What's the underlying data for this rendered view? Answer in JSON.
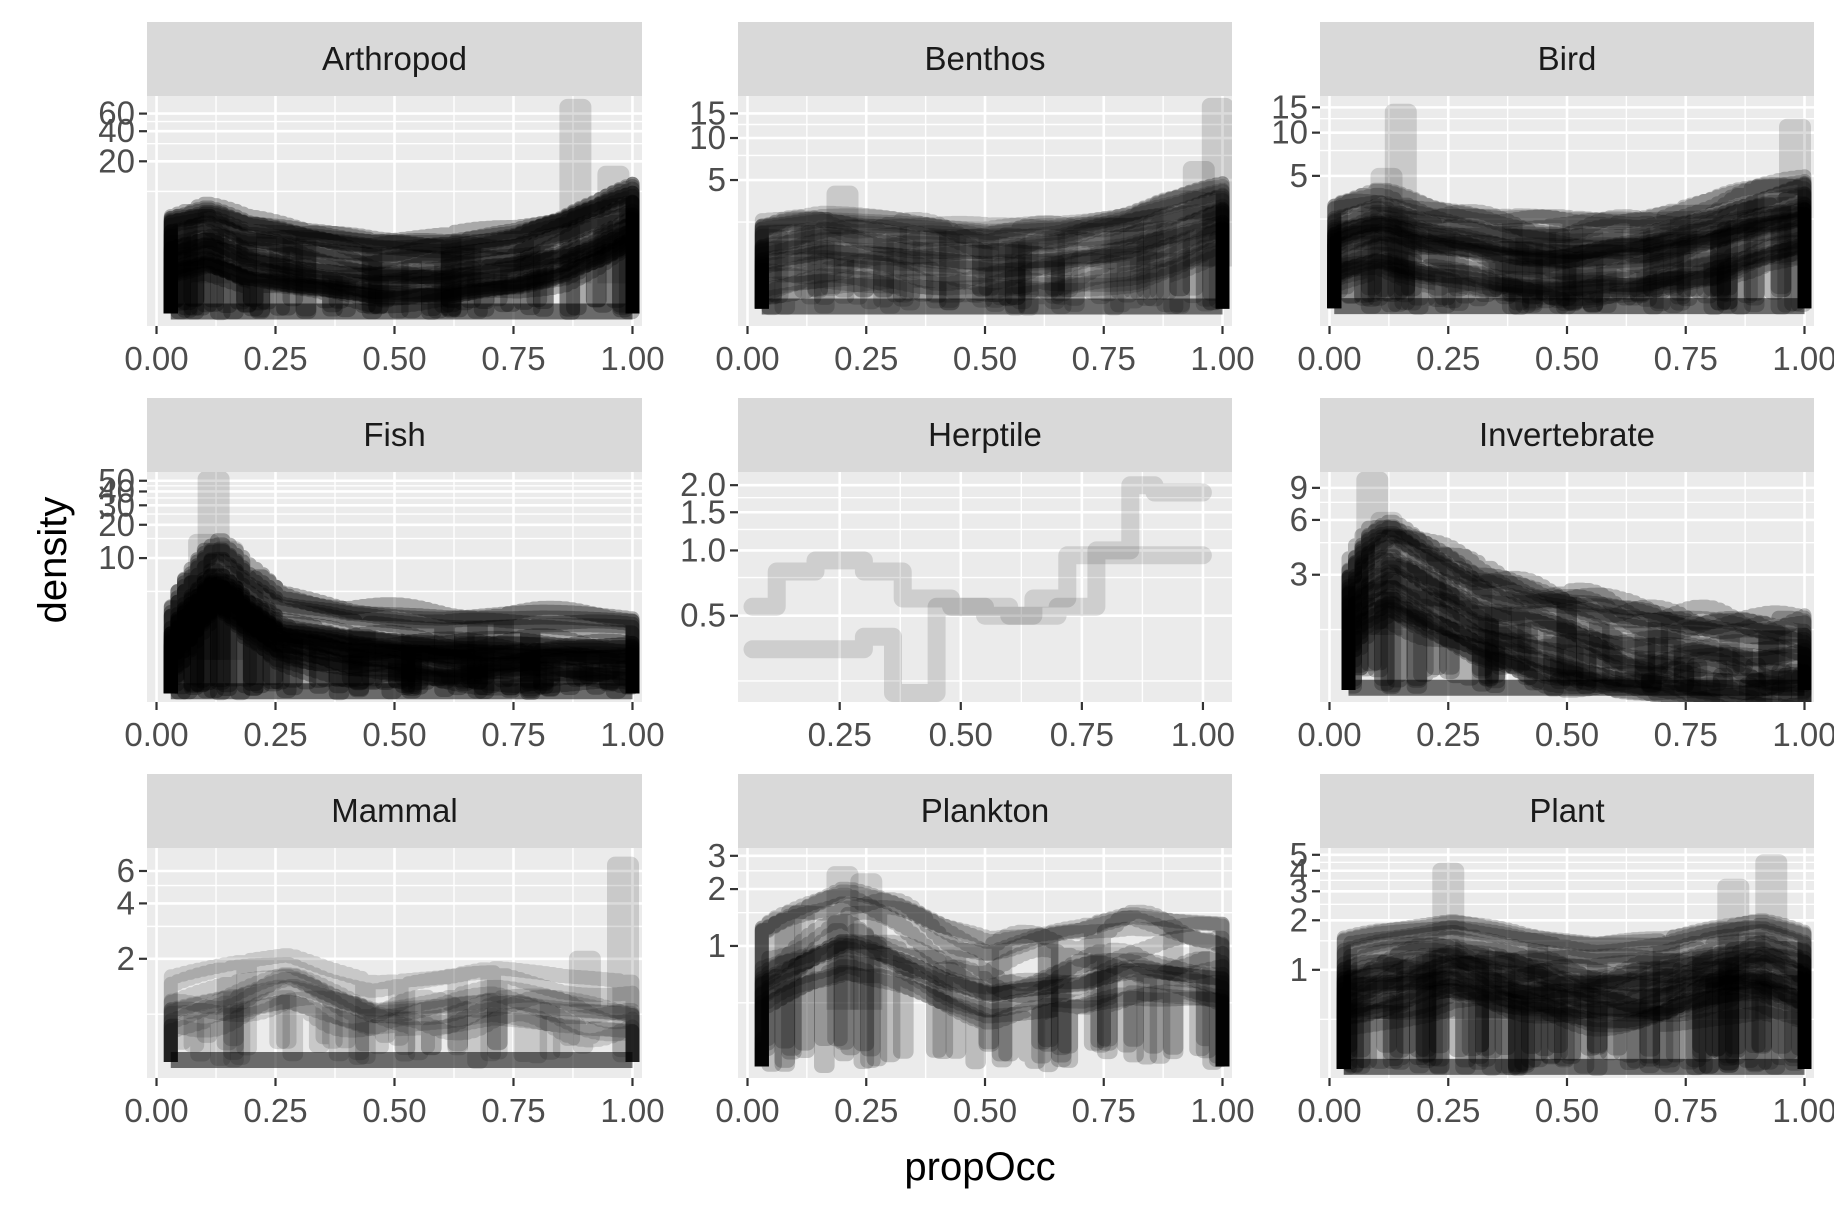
{
  "chart_data": {
    "type": "line",
    "layout": "facet_wrap 3x3, free y scales (log-like)",
    "xlabel": "propOcc",
    "ylabel": "density",
    "grid": true,
    "colors": {
      "panel_bg": "#ebebeb",
      "strip_bg": "#d9d9d9",
      "grid": "#ffffff",
      "line": "#000000"
    },
    "panels": [
      {
        "name": "Arthropod",
        "x_ticks": [
          "0.00",
          "0.25",
          "0.50",
          "0.75",
          "1.00"
        ],
        "x_tick_values": [
          0,
          0.25,
          0.5,
          0.75,
          1
        ],
        "xlim": [
          -0.02,
          1.02
        ],
        "y_ticks": [
          "20",
          "40",
          "60"
        ],
        "y_tick_values": [
          20,
          40,
          60
        ],
        "y_minor": [
          10,
          30,
          50
        ],
        "ylim": [
          0.45,
          90
        ],
        "x_range": [
          0.03,
          1.0
        ],
        "bottom": 0.6,
        "band_width": 0.8,
        "baseline": true,
        "n_lines": 30,
        "line_alpha": 0.28,
        "curve_x": [
          0.03,
          0.1,
          0.18,
          0.3,
          0.45,
          0.6,
          0.75,
          0.85,
          0.92,
          1.0
        ],
        "curve_y": [
          2.8,
          3.4,
          2.4,
          1.9,
          1.6,
          1.6,
          2.0,
          2.6,
          3.6,
          5.5
        ],
        "spikes": [
          [
            0.88,
            70
          ],
          [
            0.96,
            15
          ],
          [
            0.12,
            6
          ]
        ]
      },
      {
        "name": "Benthos",
        "x_ticks": [
          "0.00",
          "0.25",
          "0.50",
          "0.75",
          "1.00"
        ],
        "x_tick_values": [
          0,
          0.25,
          0.5,
          0.75,
          1
        ],
        "xlim": [
          -0.02,
          1.02
        ],
        "y_ticks": [
          "5",
          "10",
          "15"
        ],
        "y_tick_values": [
          5,
          10,
          15
        ],
        "y_minor": [
          2.5,
          7.5,
          12.5
        ],
        "ylim": [
          0.45,
          20
        ],
        "x_range": [
          0.03,
          1.0
        ],
        "bottom": 0.6,
        "band_width": 0.55,
        "baseline": true,
        "n_lines": 28,
        "line_alpha": 0.18,
        "curve_x": [
          0.03,
          0.15,
          0.3,
          0.5,
          0.65,
          0.8,
          0.9,
          1.0
        ],
        "curve_y": [
          1.4,
          1.6,
          1.5,
          1.3,
          1.4,
          1.7,
          2.1,
          2.6
        ],
        "spikes": [
          [
            0.99,
            17
          ],
          [
            0.95,
            6
          ],
          [
            0.2,
            4
          ]
        ]
      },
      {
        "name": "Bird",
        "x_ticks": [
          "0.00",
          "0.25",
          "0.50",
          "0.75",
          "1.00"
        ],
        "x_tick_values": [
          0,
          0.25,
          0.5,
          0.75,
          1
        ],
        "xlim": [
          -0.02,
          1.02
        ],
        "y_ticks": [
          "5",
          "10",
          "15"
        ],
        "y_tick_values": [
          5,
          10,
          15
        ],
        "y_minor": [
          2.5,
          7.5,
          12.5
        ],
        "ylim": [
          0.45,
          18
        ],
        "x_range": [
          0.01,
          1.0
        ],
        "bottom": 0.6,
        "band_width": 0.7,
        "baseline": true,
        "n_lines": 34,
        "line_alpha": 0.22,
        "curve_x": [
          0.01,
          0.1,
          0.2,
          0.35,
          0.5,
          0.65,
          0.8,
          0.9,
          1.0
        ],
        "curve_y": [
          1.8,
          2.2,
          1.8,
          1.5,
          1.4,
          1.5,
          1.9,
          2.4,
          2.8
        ],
        "spikes": [
          [
            0.15,
            14
          ],
          [
            0.98,
            11
          ],
          [
            0.12,
            5
          ]
        ]
      },
      {
        "name": "Fish",
        "x_ticks": [
          "0.00",
          "0.25",
          "0.50",
          "0.75",
          "1.00"
        ],
        "x_tick_values": [
          0,
          0.25,
          0.5,
          0.75,
          1
        ],
        "xlim": [
          -0.02,
          1.02
        ],
        "y_ticks": [
          "10",
          "20",
          "30",
          "40",
          "50"
        ],
        "y_tick_values": [
          10,
          20,
          30,
          40,
          50
        ],
        "y_minor": [
          5,
          15,
          25,
          35,
          45
        ],
        "ylim": [
          0.5,
          60
        ],
        "x_range": [
          0.03,
          1.0
        ],
        "bottom": 0.6,
        "band_width": 0.8,
        "baseline": true,
        "n_lines": 32,
        "line_alpha": 0.3,
        "curve_x": [
          0.03,
          0.08,
          0.12,
          0.18,
          0.25,
          0.4,
          0.6,
          0.8,
          1.0
        ],
        "curve_y": [
          2.0,
          4.5,
          7.0,
          4.0,
          2.4,
          1.8,
          1.6,
          1.6,
          1.5
        ],
        "spikes": [
          [
            0.12,
            52
          ],
          [
            0.15,
            12
          ],
          [
            0.1,
            14
          ]
        ]
      },
      {
        "name": "Herptile",
        "x_ticks": [
          "0.25",
          "0.50",
          "0.75",
          "1.00"
        ],
        "x_tick_values": [
          0.25,
          0.5,
          0.75,
          1
        ],
        "xlim": [
          0.04,
          1.06
        ],
        "y_ticks": [
          "0.5",
          "1.0",
          "1.5",
          "2.0"
        ],
        "y_tick_values": [
          0.5,
          1.0,
          1.5,
          2.0
        ],
        "y_minor": [
          0.25,
          0.75,
          1.25,
          1.75
        ],
        "ylim": [
          0.2,
          2.3
        ],
        "x_range": [
          0.07,
          1.0
        ],
        "bottom": 0.22,
        "band_width": 0.0,
        "baseline": false,
        "n_lines": 0,
        "line_alpha": 0.12,
        "curve_x": [
          0.07,
          1.0
        ],
        "curve_y": [
          0.5,
          0.5
        ],
        "spikes": [],
        "steps": [
          [
            [
              0.07,
              0.55
            ],
            [
              0.12,
              0.55
            ],
            [
              0.12,
              0.8
            ],
            [
              0.2,
              0.8
            ],
            [
              0.2,
              0.9
            ],
            [
              0.3,
              0.9
            ],
            [
              0.3,
              0.8
            ],
            [
              0.38,
              0.8
            ],
            [
              0.38,
              0.6
            ],
            [
              0.48,
              0.6
            ],
            [
              0.48,
              0.55
            ],
            [
              0.6,
              0.55
            ],
            [
              0.6,
              0.5
            ],
            [
              0.7,
              0.5
            ],
            [
              0.7,
              0.55
            ],
            [
              0.78,
              0.55
            ],
            [
              0.78,
              1.0
            ],
            [
              0.85,
              1.0
            ],
            [
              0.85,
              2.0
            ],
            [
              0.9,
              2.0
            ],
            [
              0.9,
              1.85
            ],
            [
              1.0,
              1.85
            ]
          ],
          [
            [
              0.07,
              0.35
            ],
            [
              0.3,
              0.35
            ],
            [
              0.3,
              0.4
            ],
            [
              0.36,
              0.4
            ],
            [
              0.36,
              0.22
            ],
            [
              0.45,
              0.22
            ],
            [
              0.45,
              0.55
            ],
            [
              0.55,
              0.55
            ],
            [
              0.55,
              0.5
            ],
            [
              0.65,
              0.5
            ],
            [
              0.65,
              0.6
            ],
            [
              0.72,
              0.6
            ],
            [
              0.72,
              0.95
            ],
            [
              1.0,
              0.95
            ]
          ]
        ]
      },
      {
        "name": "Invertebrate",
        "x_ticks": [
          "0.00",
          "0.25",
          "0.50",
          "0.75",
          "1.00"
        ],
        "x_tick_values": [
          0,
          0.25,
          0.5,
          0.75,
          1
        ],
        "xlim": [
          -0.02,
          1.02
        ],
        "y_ticks": [
          "3",
          "6",
          "9"
        ],
        "y_tick_values": [
          3,
          6,
          9
        ],
        "y_minor": [
          1.5,
          4.5,
          7.5
        ],
        "ylim": [
          0.6,
          11
        ],
        "x_range": [
          0.04,
          1.0
        ],
        "bottom": 0.7,
        "band_width": 0.6,
        "baseline": true,
        "n_lines": 30,
        "line_alpha": 0.25,
        "curve_x": [
          0.04,
          0.08,
          0.12,
          0.2,
          0.3,
          0.45,
          0.6,
          0.75,
          0.9,
          1.0
        ],
        "curve_y": [
          2.0,
          3.0,
          3.4,
          2.6,
          1.9,
          1.5,
          1.2,
          1.1,
          1.0,
          1.0
        ],
        "spikes": [
          [
            0.09,
            10
          ],
          [
            0.12,
            6
          ]
        ]
      },
      {
        "name": "Mammal",
        "x_ticks": [
          "0.00",
          "0.25",
          "0.50",
          "0.75",
          "1.00"
        ],
        "x_tick_values": [
          0,
          0.25,
          0.5,
          0.75,
          1
        ],
        "xlim": [
          -0.02,
          1.02
        ],
        "y_ticks": [
          "2",
          "4",
          "6"
        ],
        "y_tick_values": [
          2,
          4,
          6
        ],
        "y_minor": [
          1,
          3,
          5
        ],
        "ylim": [
          0.45,
          8
        ],
        "x_range": [
          0.03,
          1.0
        ],
        "bottom": 0.55,
        "band_width": 0.35,
        "baseline": true,
        "n_lines": 12,
        "line_alpha": 0.15,
        "curve_x": [
          0.03,
          0.15,
          0.27,
          0.35,
          0.45,
          0.6,
          0.7,
          0.85,
          1.0
        ],
        "curve_y": [
          1.1,
          1.3,
          1.5,
          1.3,
          1.1,
          1.15,
          1.25,
          1.1,
          1.05
        ],
        "spikes": [
          [
            0.98,
            6.5
          ],
          [
            0.9,
            2.0
          ]
        ]
      },
      {
        "name": "Plankton",
        "x_ticks": [
          "0.00",
          "0.25",
          "0.50",
          "0.75",
          "1.00"
        ],
        "x_tick_values": [
          0,
          0.25,
          0.5,
          0.75,
          1
        ],
        "xlim": [
          -0.02,
          1.02
        ],
        "y_ticks": [
          "1",
          "2",
          "3"
        ],
        "y_tick_values": [
          1,
          2,
          3
        ],
        "y_minor": [
          0.5,
          1.5,
          2.5
        ],
        "ylim": [
          0.2,
          3.3
        ],
        "x_range": [
          0.03,
          1.0
        ],
        "bottom": 0.23,
        "band_width": 0.55,
        "baseline": false,
        "n_lines": 18,
        "line_alpha": 0.2,
        "curve_x": [
          0.03,
          0.1,
          0.2,
          0.3,
          0.4,
          0.5,
          0.6,
          0.7,
          0.8,
          0.9,
          1.0
        ],
        "curve_y": [
          0.8,
          1.0,
          1.3,
          1.1,
          0.85,
          0.7,
          0.75,
          0.8,
          0.95,
          0.9,
          0.85
        ],
        "spikes": [
          [
            0.2,
            2.4
          ],
          [
            0.25,
            2.2
          ]
        ]
      },
      {
        "name": "Plant",
        "x_ticks": [
          "0.00",
          "0.25",
          "0.50",
          "0.75",
          "1.00"
        ],
        "x_tick_values": [
          0,
          0.25,
          0.5,
          0.75,
          1
        ],
        "xlim": [
          -0.02,
          1.02
        ],
        "y_ticks": [
          "1",
          "2",
          "3",
          "4",
          "5"
        ],
        "y_tick_values": [
          1,
          2,
          3,
          4,
          5
        ],
        "y_minor": [
          0.5,
          1.5,
          2.5,
          3.5,
          4.5
        ],
        "ylim": [
          0.22,
          5.5
        ],
        "x_range": [
          0.03,
          1.0
        ],
        "bottom": 0.25,
        "band_width": 0.6,
        "baseline": true,
        "n_lines": 34,
        "line_alpha": 0.22,
        "curve_x": [
          0.03,
          0.1,
          0.25,
          0.4,
          0.55,
          0.7,
          0.8,
          0.9,
          1.0
        ],
        "curve_y": [
          0.85,
          0.95,
          1.1,
          0.9,
          0.8,
          0.85,
          1.0,
          1.1,
          0.9
        ],
        "spikes": [
          [
            0.93,
            4.5
          ],
          [
            0.25,
            4.0
          ],
          [
            0.85,
            3.2
          ]
        ]
      }
    ]
  }
}
